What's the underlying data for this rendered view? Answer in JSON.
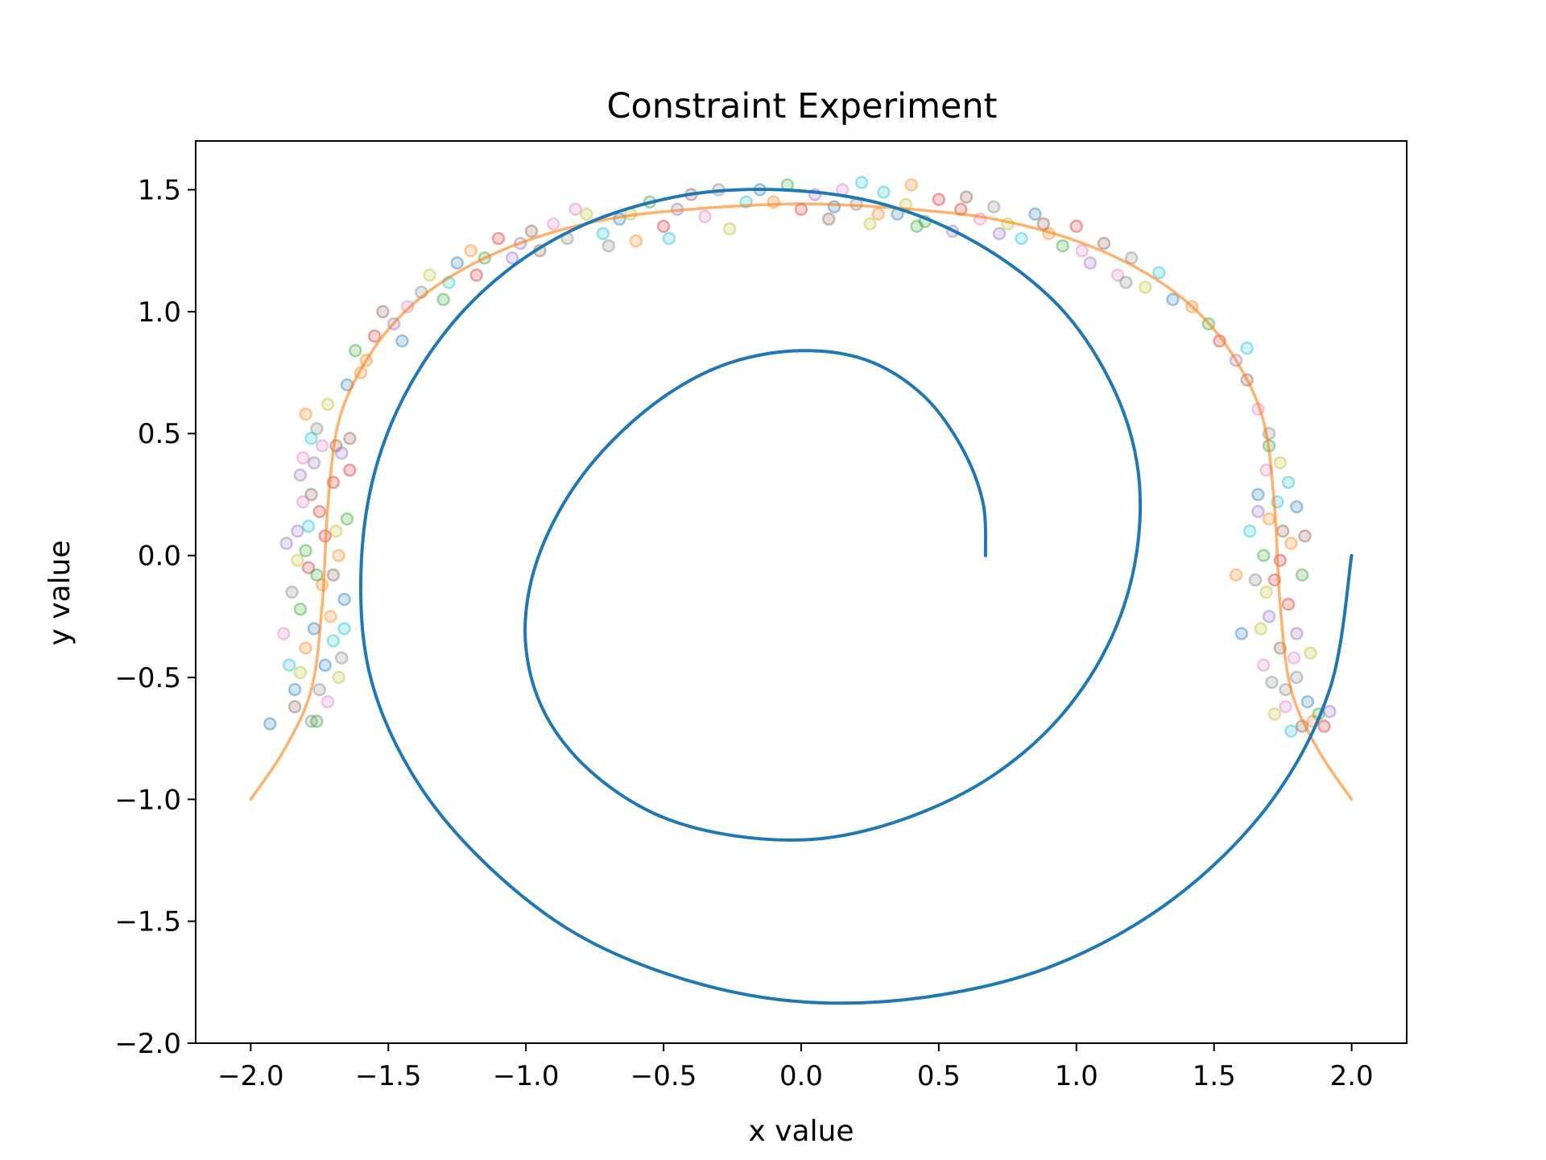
{
  "chart_data": {
    "type": "scatter",
    "title": "Constraint Experiment",
    "xlabel": "x value",
    "ylabel": "y value",
    "xlim": [
      -2.2,
      2.2
    ],
    "ylim": [
      -2.0,
      1.7
    ],
    "xticks": [
      -2.0,
      -1.5,
      -1.0,
      -0.5,
      0.0,
      0.5,
      1.0,
      1.5,
      2.0
    ],
    "xtick_labels": [
      "−2.0",
      "−1.5",
      "−1.0",
      "−0.5",
      "0.0",
      "0.5",
      "1.0",
      "1.5",
      "2.0"
    ],
    "yticks": [
      -2.0,
      -1.5,
      -1.0,
      -0.5,
      0.0,
      0.5,
      1.0,
      1.5
    ],
    "ytick_labels": [
      "−2.0",
      "−1.5",
      "−1.0",
      "−0.5",
      "0.0",
      "0.5",
      "1.0",
      "1.5"
    ],
    "grid": false,
    "legend": "none",
    "lines": [
      {
        "style": "spiral",
        "color": "#1f77b4",
        "points": [
          [
            2.0,
            0.0
          ],
          [
            1.92,
            -0.55
          ],
          [
            1.7,
            -1.02
          ],
          [
            1.35,
            -1.41
          ],
          [
            0.92,
            -1.68
          ],
          [
            0.46,
            -1.81
          ],
          [
            0.0,
            -1.83
          ],
          [
            -0.42,
            -1.74
          ],
          [
            -0.82,
            -1.55
          ],
          [
            -1.15,
            -1.26
          ],
          [
            -1.4,
            -0.92
          ],
          [
            -1.56,
            -0.52
          ],
          [
            -1.6,
            -0.1
          ],
          [
            -1.55,
            0.34
          ],
          [
            -1.4,
            0.74
          ],
          [
            -1.16,
            1.08
          ],
          [
            -0.84,
            1.33
          ],
          [
            -0.46,
            1.47
          ],
          [
            -0.08,
            1.5
          ],
          [
            0.3,
            1.44
          ],
          [
            0.64,
            1.28
          ],
          [
            0.93,
            1.03
          ],
          [
            1.12,
            0.72
          ],
          [
            1.22,
            0.38
          ],
          [
            1.22,
            0.02
          ],
          [
            1.13,
            -0.33
          ],
          [
            0.95,
            -0.65
          ],
          [
            0.7,
            -0.9
          ],
          [
            0.4,
            -1.07
          ],
          [
            0.08,
            -1.16
          ],
          [
            -0.24,
            -1.15
          ],
          [
            -0.53,
            -1.06
          ],
          [
            -0.77,
            -0.88
          ],
          [
            -0.93,
            -0.65
          ],
          [
            -1.0,
            -0.38
          ],
          [
            -0.98,
            -0.1
          ],
          [
            -0.88,
            0.18
          ],
          [
            -0.72,
            0.43
          ],
          [
            -0.5,
            0.65
          ],
          [
            -0.26,
            0.79
          ],
          [
            0.0,
            0.84
          ],
          [
            0.24,
            0.8
          ],
          [
            0.44,
            0.66
          ],
          [
            0.58,
            0.45
          ],
          [
            0.66,
            0.22
          ],
          [
            0.67,
            0.0
          ]
        ]
      },
      {
        "style": "arch",
        "color": "#ff7f0e",
        "points": [
          [
            -2.0,
            -1.0
          ],
          [
            -1.88,
            -0.8
          ],
          [
            -1.78,
            -0.55
          ],
          [
            -1.74,
            -0.2
          ],
          [
            -1.72,
            0.2
          ],
          [
            -1.68,
            0.55
          ],
          [
            -1.58,
            0.8
          ],
          [
            -1.44,
            1.0
          ],
          [
            -1.25,
            1.16
          ],
          [
            -1.0,
            1.29
          ],
          [
            -0.7,
            1.38
          ],
          [
            -0.4,
            1.42
          ],
          [
            -0.1,
            1.44
          ],
          [
            0.1,
            1.44
          ],
          [
            0.4,
            1.42
          ],
          [
            0.7,
            1.38
          ],
          [
            1.0,
            1.29
          ],
          [
            1.25,
            1.16
          ],
          [
            1.44,
            1.0
          ],
          [
            1.58,
            0.8
          ],
          [
            1.68,
            0.55
          ],
          [
            1.72,
            0.2
          ],
          [
            1.74,
            -0.2
          ],
          [
            1.78,
            -0.55
          ],
          [
            1.88,
            -0.8
          ],
          [
            2.0,
            -1.0
          ]
        ]
      }
    ],
    "scatter_colors": [
      "#1f77b4",
      "#ff7f0e",
      "#2ca02c",
      "#d62728",
      "#9467bd",
      "#8c564b",
      "#e377c2",
      "#7f7f7f",
      "#bcbd22",
      "#17becf"
    ],
    "scatter_opacity": 0.25,
    "scatter_points": [
      [
        -1.84,
        -0.55
      ],
      [
        -1.8,
        -0.38
      ],
      [
        -1.82,
        -0.22
      ],
      [
        -1.79,
        -0.05
      ],
      [
        -1.83,
        0.1
      ],
      [
        -1.78,
        0.25
      ],
      [
        -1.81,
        0.4
      ],
      [
        -1.76,
        0.52
      ],
      [
        -1.72,
        0.62
      ],
      [
        -1.86,
        -0.45
      ],
      [
        -1.77,
        -0.3
      ],
      [
        -1.74,
        -0.12
      ],
      [
        -1.8,
        0.02
      ],
      [
        -1.75,
        0.18
      ],
      [
        -1.82,
        0.33
      ],
      [
        -1.69,
        0.45
      ],
      [
        -1.72,
        -0.6
      ],
      [
        -1.78,
        -0.68
      ],
      [
        -1.68,
        -0.5
      ],
      [
        -1.7,
        -0.35
      ],
      [
        -1.66,
        -0.18
      ],
      [
        -1.68,
        0.0
      ],
      [
        -1.65,
        0.15
      ],
      [
        -1.7,
        0.3
      ],
      [
        -1.67,
        0.42
      ],
      [
        -1.64,
        0.48
      ],
      [
        -1.88,
        -0.32
      ],
      [
        -1.85,
        -0.15
      ],
      [
        -1.83,
        -0.02
      ],
      [
        -1.79,
        0.12
      ],
      [
        -1.73,
        -0.45
      ],
      [
        -1.71,
        -0.25
      ],
      [
        -1.76,
        -0.08
      ],
      [
        -1.73,
        0.08
      ],
      [
        -1.77,
        0.38
      ],
      [
        -1.84,
        -0.62
      ],
      [
        -1.81,
        0.22
      ],
      [
        -1.75,
        -0.55
      ],
      [
        -1.69,
        0.1
      ],
      [
        -1.66,
        -0.3
      ],
      [
        -1.93,
        -0.69
      ],
      [
        -1.8,
        0.58
      ],
      [
        -1.76,
        -0.68
      ],
      [
        -1.64,
        0.35
      ],
      [
        -1.87,
        0.05
      ],
      [
        -1.7,
        -0.08
      ],
      [
        -1.74,
        0.45
      ],
      [
        -1.67,
        -0.42
      ],
      [
        -1.82,
        -0.48
      ],
      [
        -1.78,
        0.48
      ],
      [
        -1.65,
        0.7
      ],
      [
        -1.58,
        0.8
      ],
      [
        -1.62,
        0.84
      ],
      [
        -1.55,
        0.9
      ],
      [
        -1.48,
        0.95
      ],
      [
        -1.52,
        1.0
      ],
      [
        -1.43,
        1.02
      ],
      [
        -1.38,
        1.08
      ],
      [
        -1.35,
        1.15
      ],
      [
        -1.28,
        1.12
      ],
      [
        -1.25,
        1.2
      ],
      [
        -1.2,
        1.25
      ],
      [
        -1.15,
        1.22
      ],
      [
        -1.1,
        1.3
      ],
      [
        -1.02,
        1.28
      ],
      [
        -0.98,
        1.33
      ],
      [
        -0.9,
        1.36
      ],
      [
        -0.85,
        1.3
      ],
      [
        -0.78,
        1.4
      ],
      [
        -0.72,
        1.32
      ],
      [
        -0.66,
        1.38
      ],
      [
        -0.6,
        1.29
      ],
      [
        -0.55,
        1.45
      ],
      [
        -0.5,
        1.35
      ],
      [
        -0.45,
        1.42
      ],
      [
        -0.4,
        1.48
      ],
      [
        -0.35,
        1.39
      ],
      [
        -0.3,
        1.5
      ],
      [
        -0.26,
        1.34
      ],
      [
        -0.2,
        1.45
      ],
      [
        -1.45,
        0.88
      ],
      [
        -1.6,
        0.75
      ],
      [
        -1.3,
        1.05
      ],
      [
        -1.18,
        1.15
      ],
      [
        -1.05,
        1.22
      ],
      [
        -0.95,
        1.25
      ],
      [
        -0.82,
        1.42
      ],
      [
        -0.7,
        1.27
      ],
      [
        -0.62,
        1.4
      ],
      [
        -0.48,
        1.3
      ],
      [
        -0.15,
        1.5
      ],
      [
        -0.1,
        1.45
      ],
      [
        -0.05,
        1.52
      ],
      [
        0.0,
        1.42
      ],
      [
        0.05,
        1.48
      ],
      [
        0.1,
        1.38
      ],
      [
        0.15,
        1.5
      ],
      [
        0.2,
        1.44
      ],
      [
        0.25,
        1.36
      ],
      [
        0.3,
        1.49
      ],
      [
        0.35,
        1.4
      ],
      [
        0.4,
        1.52
      ],
      [
        0.45,
        1.37
      ],
      [
        0.5,
        1.46
      ],
      [
        0.55,
        1.33
      ],
      [
        0.6,
        1.47
      ],
      [
        0.65,
        1.38
      ],
      [
        0.7,
        1.43
      ],
      [
        0.75,
        1.36
      ],
      [
        0.8,
        1.3
      ],
      [
        0.85,
        1.4
      ],
      [
        0.9,
        1.32
      ],
      [
        0.95,
        1.27
      ],
      [
        1.0,
        1.35
      ],
      [
        1.05,
        1.2
      ],
      [
        1.1,
        1.28
      ],
      [
        1.15,
        1.15
      ],
      [
        1.2,
        1.22
      ],
      [
        1.25,
        1.1
      ],
      [
        1.3,
        1.16
      ],
      [
        0.12,
        1.43
      ],
      [
        0.28,
        1.4
      ],
      [
        0.42,
        1.35
      ],
      [
        0.58,
        1.42
      ],
      [
        0.72,
        1.32
      ],
      [
        0.88,
        1.36
      ],
      [
        1.02,
        1.25
      ],
      [
        1.18,
        1.12
      ],
      [
        0.38,
        1.44
      ],
      [
        0.22,
        1.53
      ],
      [
        1.35,
        1.05
      ],
      [
        1.42,
        1.02
      ],
      [
        1.48,
        0.95
      ],
      [
        1.52,
        0.88
      ],
      [
        1.58,
        0.8
      ],
      [
        1.62,
        0.72
      ],
      [
        1.66,
        0.6
      ],
      [
        1.7,
        0.5
      ],
      [
        1.74,
        0.38
      ],
      [
        1.62,
        0.85
      ],
      [
        1.66,
        0.25
      ],
      [
        1.7,
        0.15
      ],
      [
        1.68,
        0.0
      ],
      [
        1.72,
        -0.1
      ],
      [
        1.7,
        -0.25
      ],
      [
        1.74,
        -0.38
      ],
      [
        1.68,
        -0.45
      ],
      [
        1.76,
        -0.55
      ],
      [
        1.72,
        -0.65
      ],
      [
        1.78,
        -0.72
      ],
      [
        1.8,
        0.2
      ],
      [
        1.78,
        0.05
      ],
      [
        1.82,
        -0.08
      ],
      [
        1.77,
        -0.2
      ],
      [
        1.8,
        -0.32
      ],
      [
        1.75,
        0.1
      ],
      [
        1.69,
        0.35
      ],
      [
        1.65,
        -0.1
      ],
      [
        1.67,
        -0.3
      ],
      [
        1.73,
        0.22
      ],
      [
        1.84,
        -0.6
      ],
      [
        1.86,
        -0.68
      ],
      [
        1.88,
        -0.65
      ],
      [
        1.9,
        -0.7
      ],
      [
        1.92,
        -0.64
      ],
      [
        1.82,
        -0.7
      ],
      [
        1.76,
        -0.62
      ],
      [
        1.8,
        -0.5
      ],
      [
        1.85,
        -0.4
      ],
      [
        1.63,
        0.1
      ],
      [
        1.6,
        -0.32
      ],
      [
        1.58,
        -0.08
      ],
      [
        1.7,
        0.45
      ],
      [
        1.74,
        -0.02
      ],
      [
        1.66,
        0.18
      ],
      [
        1.83,
        0.08
      ],
      [
        1.79,
        -0.42
      ],
      [
        1.71,
        -0.52
      ],
      [
        1.69,
        -0.15
      ],
      [
        1.77,
        0.3
      ]
    ]
  }
}
